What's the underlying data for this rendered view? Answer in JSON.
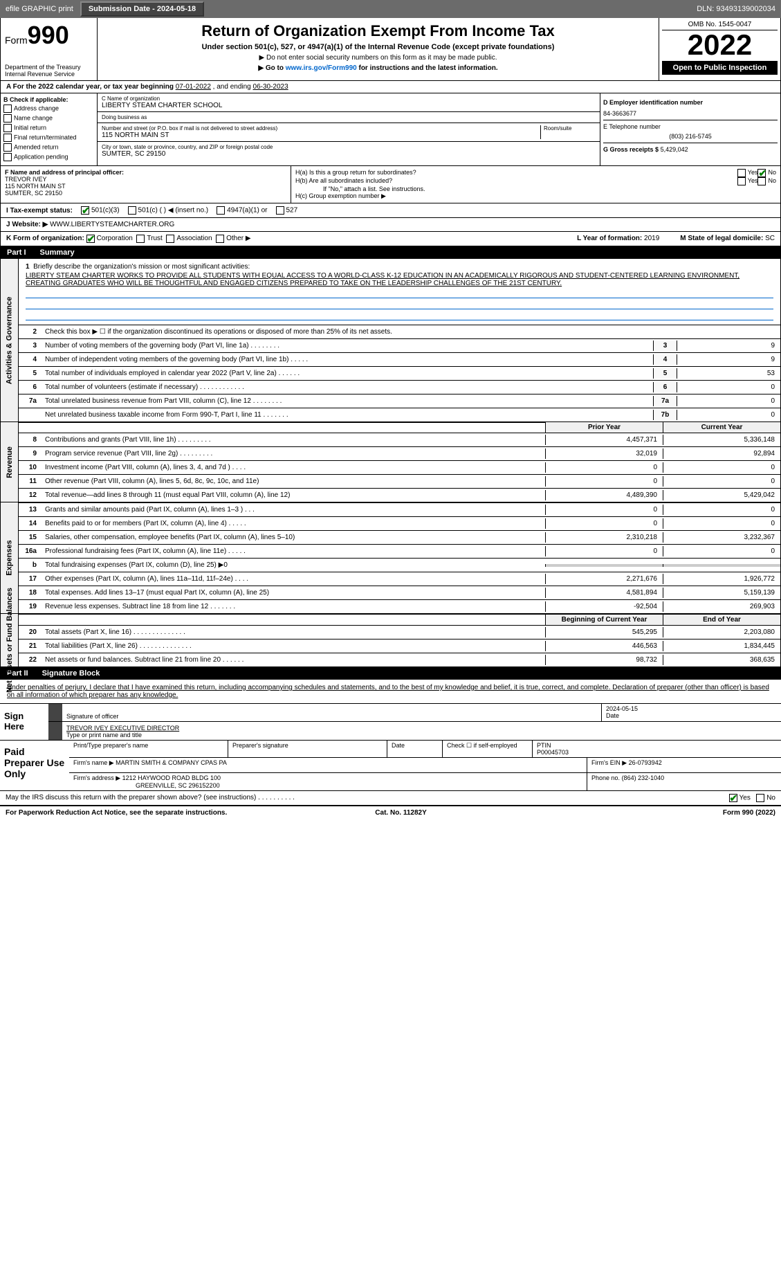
{
  "topbar": {
    "efile_label": "efile GRAPHIC print",
    "submission_label": "Submission Date - 2024-05-18",
    "dln_label": "DLN: 93493139002034"
  },
  "header": {
    "form_word": "Form",
    "form_number": "990",
    "dept": "Department of the Treasury\nInternal Revenue Service",
    "title": "Return of Organization Exempt From Income Tax",
    "subtitle": "Under section 501(c), 527, or 4947(a)(1) of the Internal Revenue Code (except private foundations)",
    "note1": "▶ Do not enter social security numbers on this form as it may be made public.",
    "note2": "▶ Go to www.irs.gov/Form990 for instructions and the latest information.",
    "link_url": "www.irs.gov/Form990",
    "omb": "OMB No. 1545-0047",
    "year": "2022",
    "inspection": "Open to Public Inspection"
  },
  "period": {
    "label_a": "A For the 2022 calendar year, or tax year beginning",
    "begin": "07-01-2022",
    "label_b": ", and ending",
    "end": "06-30-2023"
  },
  "checkboxes": {
    "header": "B Check if applicable:",
    "address": "Address change",
    "name": "Name change",
    "initial": "Initial return",
    "final": "Final return/terminated",
    "amended": "Amended return",
    "application": "Application pending"
  },
  "org": {
    "name_label": "C Name of organization",
    "name": "LIBERTY STEAM CHARTER SCHOOL",
    "dba_label": "Doing business as",
    "street_label": "Number and street (or P.O. box if mail is not delivered to street address)",
    "room_label": "Room/suite",
    "street": "115 NORTH MAIN ST",
    "city_label": "City or town, state or province, country, and ZIP or foreign postal code",
    "city": "SUMTER, SC  29150"
  },
  "ein_section": {
    "ein_label": "D Employer identification number",
    "ein": "84-3663677",
    "phone_label": "E Telephone number",
    "phone": "(803) 216-5745",
    "gross_label": "G Gross receipts $",
    "gross": "5,429,042"
  },
  "officer": {
    "label": "F  Name and address of principal officer:",
    "name": "TREVOR IVEY",
    "addr1": "115 NORTH MAIN ST",
    "addr2": "SUMTER, SC  29150",
    "h_a": "H(a)  Is this a group return for subordinates?",
    "h_b": "H(b)  Are all subordinates included?",
    "h_note": "If \"No,\" attach a list. See instructions.",
    "h_c": "H(c)  Group exemption number ▶",
    "yes": "Yes",
    "no": "No"
  },
  "status": {
    "i_label": "I  Tax-exempt status:",
    "s501c3": "501(c)(3)",
    "s501c": "501(c) (   ) ◀ (insert no.)",
    "s4947": "4947(a)(1) or",
    "s527": "527"
  },
  "website": {
    "j_label": "J  Website: ▶",
    "url": "WWW.LIBERTYSTEAMCHARTER.ORG"
  },
  "formorg": {
    "k_label": "K Form of organization:",
    "corp": "Corporation",
    "trust": "Trust",
    "assoc": "Association",
    "other": "Other ▶",
    "l_label": "L Year of formation:",
    "l_val": "2019",
    "m_label": "M State of legal domicile:",
    "m_val": "SC"
  },
  "part1": {
    "label": "Part I",
    "title": "Summary"
  },
  "mission": {
    "num": "1",
    "label": "Briefly describe the organization's mission or most significant activities:",
    "text": "LIBERTY STEAM CHARTER WORKS TO PROVIDE ALL STUDENTS WITH EQUAL ACCESS TO A WORLD-CLASS K-12 EDUCATION IN AN ACADEMICALLY RIGOROUS AND STUDENT-CENTERED LEARNING ENVIRONMENT, CREATING GRADUATES WHO WILL BE THOUGHTFUL AND ENGAGED CITIZENS PREPARED TO TAKE ON THE LEADERSHIP CHALLENGES OF THE 21ST CENTURY."
  },
  "governance_rows": [
    {
      "n": "2",
      "label": "Check this box ▶ ☐  if the organization discontinued its operations or disposed of more than 25% of its net assets.",
      "box": "",
      "val": ""
    },
    {
      "n": "3",
      "label": "Number of voting members of the governing body (Part VI, line 1a)   .    .    .    .    .    .    .    .",
      "box": "3",
      "val": "9"
    },
    {
      "n": "4",
      "label": "Number of independent voting members of the governing body (Part VI, line 1b)  .    .    .    .    .",
      "box": "4",
      "val": "9"
    },
    {
      "n": "5",
      "label": "Total number of individuals employed in calendar year 2022 (Part V, line 2a)  .    .    .    .    .    .",
      "box": "5",
      "val": "53"
    },
    {
      "n": "6",
      "label": "Total number of volunteers (estimate if necessary)   .    .    .    .    .    .    .    .    .    .    .    .",
      "box": "6",
      "val": "0"
    },
    {
      "n": "7a",
      "label": "Total unrelated business revenue from Part VIII, column (C), line 12   .    .    .    .    .    .    .    .",
      "box": "7a",
      "val": "0"
    },
    {
      "n": "",
      "label": "Net unrelated business taxable income from Form 990-T, Part I, line 11   .    .    .    .    .    .    .",
      "box": "7b",
      "val": "0"
    }
  ],
  "col_headers": {
    "prior": "Prior Year",
    "current": "Current Year"
  },
  "revenue_rows": [
    {
      "n": "8",
      "label": "Contributions and grants (Part VIII, line 1h)   .    .    .    .    .    .    .    .    .",
      "prior": "4,457,371",
      "cur": "5,336,148"
    },
    {
      "n": "9",
      "label": "Program service revenue (Part VIII, line 2g)   .    .    .    .    .    .    .    .    .",
      "prior": "32,019",
      "cur": "92,894"
    },
    {
      "n": "10",
      "label": "Investment income (Part VIII, column (A), lines 3, 4, and 7d )   .    .    .    .",
      "prior": "0",
      "cur": "0"
    },
    {
      "n": "11",
      "label": "Other revenue (Part VIII, column (A), lines 5, 6d, 8c, 9c, 10c, and 11e)",
      "prior": "0",
      "cur": "0"
    },
    {
      "n": "12",
      "label": "Total revenue—add lines 8 through 11 (must equal Part VIII, column (A), line 12)",
      "prior": "4,489,390",
      "cur": "5,429,042"
    }
  ],
  "expense_rows": [
    {
      "n": "13",
      "label": "Grants and similar amounts paid (Part IX, column (A), lines 1–3 )   .    .    .",
      "prior": "0",
      "cur": "0"
    },
    {
      "n": "14",
      "label": "Benefits paid to or for members (Part IX, column (A), line 4)   .    .    .    .    .",
      "prior": "0",
      "cur": "0"
    },
    {
      "n": "15",
      "label": "Salaries, other compensation, employee benefits (Part IX, column (A), lines 5–10)",
      "prior": "2,310,218",
      "cur": "3,232,367"
    },
    {
      "n": "16a",
      "label": "Professional fundraising fees (Part IX, column (A), line 11e)   .    .    .    .    .",
      "prior": "0",
      "cur": "0"
    },
    {
      "n": "b",
      "label": "Total fundraising expenses (Part IX, column (D), line 25) ▶0",
      "prior": "",
      "cur": ""
    },
    {
      "n": "17",
      "label": "Other expenses (Part IX, column (A), lines 11a–11d, 11f–24e)   .    .    .    .",
      "prior": "2,271,676",
      "cur": "1,926,772"
    },
    {
      "n": "18",
      "label": "Total expenses. Add lines 13–17 (must equal Part IX, column (A), line 25)",
      "prior": "4,581,894",
      "cur": "5,159,139"
    },
    {
      "n": "19",
      "label": "Revenue less expenses. Subtract line 18 from line 12   .    .    .    .    .    .    .",
      "prior": "-92,504",
      "cur": "269,903"
    }
  ],
  "net_headers": {
    "beg": "Beginning of Current Year",
    "end": "End of Year"
  },
  "net_rows": [
    {
      "n": "20",
      "label": "Total assets (Part X, line 16)   .    .    .    .    .    .    .    .    .    .    .    .    .    .",
      "prior": "545,295",
      "cur": "2,203,080"
    },
    {
      "n": "21",
      "label": "Total liabilities (Part X, line 26)   .    .    .    .    .    .    .    .    .    .    .    .    .    .",
      "prior": "446,563",
      "cur": "1,834,445"
    },
    {
      "n": "22",
      "label": "Net assets or fund balances. Subtract line 21 from line 20   .    .    .    .    .    .",
      "prior": "98,732",
      "cur": "368,635"
    }
  ],
  "part2": {
    "label": "Part II",
    "title": "Signature Block"
  },
  "sig": {
    "intro": "Under penalties of perjury, I declare that I have examined this return, including accompanying schedules and statements, and to the best of my knowledge and belief, it is true, correct, and complete. Declaration of preparer (other than officer) is based on all information of which preparer has any knowledge.",
    "sign_here": "Sign Here",
    "sig_officer": "Signature of officer",
    "date": "Date",
    "date_val": "2024-05-15",
    "name_title": "TREVOR IVEY EXECUTIVE DIRECTOR",
    "type_label": "Type or print name and title"
  },
  "preparer": {
    "title": "Paid Preparer Use Only",
    "print_name_label": "Print/Type preparer's name",
    "sig_label": "Preparer's signature",
    "date_label": "Date",
    "check_label": "Check ☐ if self-employed",
    "ptin_label": "PTIN",
    "ptin": "P00045703",
    "firm_name_label": "Firm's name    ▶",
    "firm_name": "MARTIN SMITH & COMPANY CPAS PA",
    "firm_ein_label": "Firm's EIN ▶",
    "firm_ein": "26-0793942",
    "firm_addr_label": "Firm's address ▶",
    "firm_addr1": "1212 HAYWOOD ROAD BLDG 100",
    "firm_addr2": "GREENVILLE, SC  296152200",
    "phone_label": "Phone no.",
    "phone": "(864) 232-1040"
  },
  "footer": {
    "discuss": "May the IRS discuss this return with the preparer shown above? (see instructions)   .    .    .    .    .    .    .    .    .    .",
    "yes": "Yes",
    "no": "No",
    "paperwork": "For Paperwork Reduction Act Notice, see the separate instructions.",
    "cat": "Cat. No. 11282Y",
    "form": "Form 990 (2022)"
  },
  "side_labels": {
    "gov": "Activities & Governance",
    "rev": "Revenue",
    "exp": "Expenses",
    "net": "Net Assets or Fund Balances"
  },
  "colors": {
    "topbar_bg": "#6b6b6b",
    "black": "#000000",
    "link": "#0066cc",
    "check_green": "#008000"
  }
}
